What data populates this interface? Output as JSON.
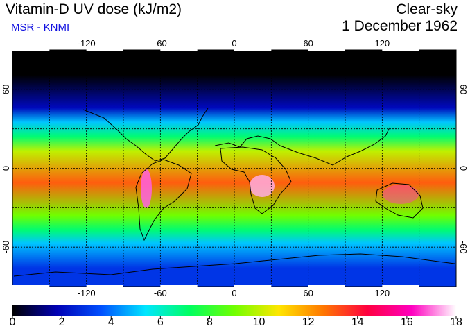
{
  "header": {
    "title": "Vitamin-D UV dose (kJ/m2)",
    "source": "MSR - KNMI",
    "condition": "Clear-sky",
    "date": "1 December 1962"
  },
  "map": {
    "projection": "equirectangular",
    "lon_ticks": [
      "-120",
      "-60",
      "0",
      "60",
      "120"
    ],
    "lat_ticks": [
      "60",
      "0",
      "-60"
    ],
    "grid": "dashed every 30 degrees",
    "coastlines": true
  },
  "colorbar": {
    "min": 0,
    "max": 18,
    "tick_labels": [
      "0",
      "2",
      "4",
      "6",
      "8",
      "10",
      "12",
      "14",
      "16",
      "18"
    ],
    "colors": [
      "#000000",
      "#0000b4",
      "#0050ff",
      "#00e6ff",
      "#00ff60",
      "#70ff00",
      "#ffe600",
      "#ff7800",
      "#ff0040",
      "#ff00c0",
      "#ffffff"
    ]
  },
  "field": {
    "description_bands": [
      {
        "lat_from": 90,
        "lat_to": 52,
        "value": 0
      },
      {
        "lat_from": 52,
        "lat_to": 40,
        "value": 2
      },
      {
        "lat_from": 40,
        "lat_to": 30,
        "value": 5
      },
      {
        "lat_from": 30,
        "lat_to": 18,
        "value": 7
      },
      {
        "lat_from": 18,
        "lat_to": 8,
        "value": 10
      },
      {
        "lat_from": 8,
        "lat_to": -30,
        "value": 13
      },
      {
        "lat_from": -30,
        "lat_to": -42,
        "value": 9
      },
      {
        "lat_from": -42,
        "lat_to": -52,
        "value": 7
      },
      {
        "lat_from": -52,
        "lat_to": -62,
        "value": 5
      },
      {
        "lat_from": -62,
        "lat_to": -90,
        "value": 3
      }
    ]
  }
}
